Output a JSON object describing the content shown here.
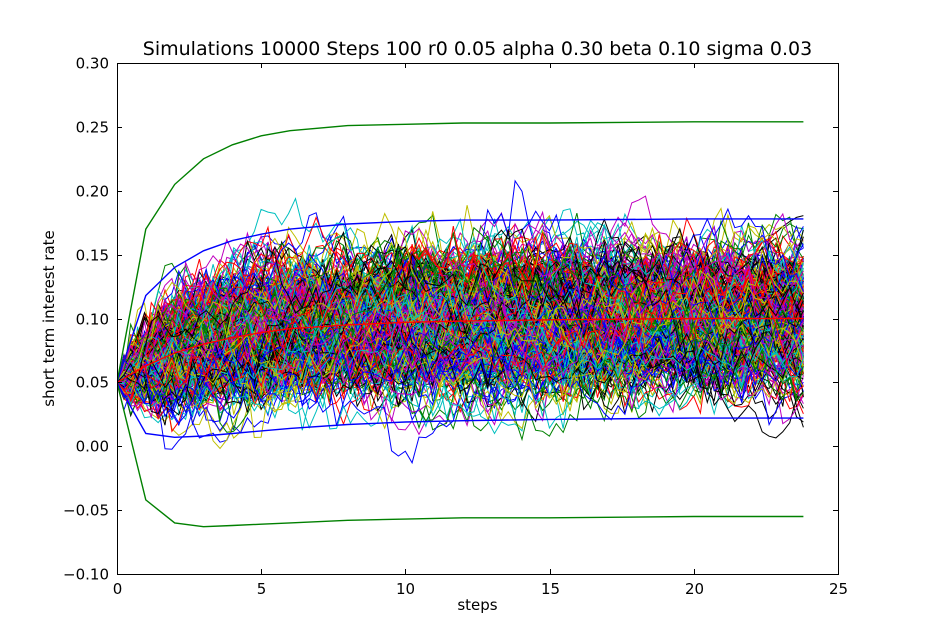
{
  "chart_data": {
    "type": "line",
    "title": "Simulations 10000 Steps 100 r0 0.05 alpha 0.30 beta 0.10 sigma 0.03",
    "xlabel": "steps",
    "ylabel": "short term interest rate",
    "xlim": [
      0,
      25
    ],
    "ylim": [
      -0.1,
      0.3
    ],
    "x_ticks": [
      0,
      5,
      10,
      15,
      20,
      25
    ],
    "x_tick_labels": [
      "0",
      "5",
      "10",
      "15",
      "20",
      "25"
    ],
    "y_ticks": [
      -0.1,
      -0.05,
      0.0,
      0.05,
      0.1,
      0.15,
      0.2,
      0.25,
      0.3
    ],
    "y_tick_labels": [
      "−0.10",
      "−0.05",
      "0.00",
      "0.05",
      "0.10",
      "0.15",
      "0.20",
      "0.25",
      "0.30"
    ],
    "grid": false,
    "simulation": {
      "r0": 0.05,
      "alpha": 0.3,
      "beta": 0.1,
      "sigma": 0.03,
      "t_end": 23.8,
      "steps": 100
    },
    "path_colors": [
      "#0000ff",
      "#008000",
      "#ff0000",
      "#00bfbf",
      "#bf00bf",
      "#bfbf00",
      "#000000"
    ],
    "series": [
      {
        "role": "mean",
        "color": "#ff0000",
        "x": [
          0,
          1,
          2,
          3,
          4,
          5,
          6,
          8,
          10,
          12,
          15,
          20,
          23.8
        ],
        "values": [
          0.05,
          0.063,
          0.073,
          0.08,
          0.085,
          0.089,
          0.092,
          0.095,
          0.097,
          0.098,
          0.099,
          0.1,
          0.1
        ]
      },
      {
        "role": "upper-band-1",
        "color": "#0000ff",
        "x": [
          0,
          1,
          2,
          3,
          4,
          5,
          6,
          8,
          10,
          12,
          15,
          20,
          23.8
        ],
        "values": [
          0.05,
          0.118,
          0.14,
          0.153,
          0.161,
          0.166,
          0.17,
          0.174,
          0.176,
          0.177,
          0.177,
          0.178,
          0.178
        ]
      },
      {
        "role": "lower-band-1",
        "color": "#0000ff",
        "x": [
          0,
          1,
          2,
          3,
          4,
          5,
          6,
          8,
          10,
          12,
          15,
          20,
          23.8
        ],
        "values": [
          0.05,
          0.01,
          0.007,
          0.008,
          0.01,
          0.012,
          0.014,
          0.017,
          0.019,
          0.02,
          0.021,
          0.022,
          0.022
        ]
      },
      {
        "role": "upper-band-2",
        "color": "#008000",
        "x": [
          0,
          1,
          2,
          3,
          4,
          5,
          6,
          8,
          10,
          12,
          15,
          20,
          23.8
        ],
        "values": [
          0.05,
          0.17,
          0.205,
          0.225,
          0.236,
          0.243,
          0.247,
          0.251,
          0.252,
          0.253,
          0.253,
          0.254,
          0.254
        ]
      },
      {
        "role": "lower-band-2",
        "color": "#008000",
        "x": [
          0,
          1,
          2,
          3,
          4,
          5,
          6,
          8,
          10,
          12,
          15,
          20,
          23.8
        ],
        "values": [
          0.05,
          -0.042,
          -0.06,
          -0.063,
          -0.062,
          -0.061,
          -0.06,
          -0.058,
          -0.057,
          -0.056,
          -0.056,
          -0.055,
          -0.055
        ]
      }
    ]
  }
}
